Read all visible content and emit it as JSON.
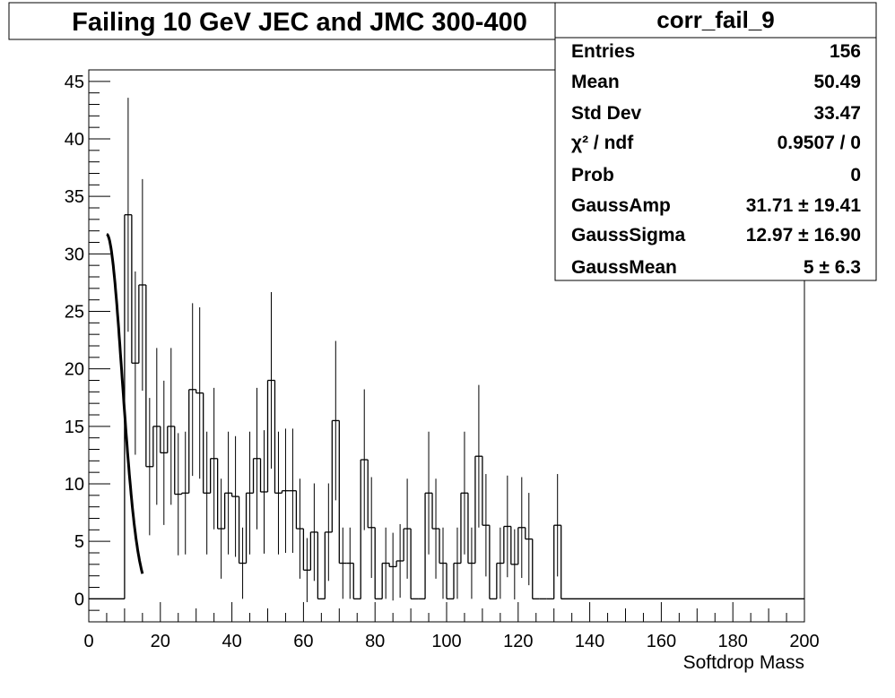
{
  "chart_data": {
    "type": "bar",
    "title": "Failing 10 GeV JEC and JMC 300-400",
    "histogram_name": "corr_fail_9",
    "xlabel": "Softdrop Mass",
    "ylabel": "",
    "xlim": [
      0,
      200
    ],
    "ylim": [
      -2,
      46
    ],
    "grid": false,
    "x_ticks": [
      "0",
      "20",
      "40",
      "60",
      "80",
      "100",
      "120",
      "140",
      "160",
      "180",
      "200"
    ],
    "y_ticks": [
      "0",
      "5",
      "10",
      "15",
      "20",
      "25",
      "30",
      "35",
      "40",
      "45"
    ],
    "bin_width": 2,
    "bin_start": 10,
    "values": [
      33.4,
      20.5,
      27.3,
      11.5,
      15,
      12.7,
      15,
      9.1,
      9.2,
      18.2,
      17.9,
      9.2,
      12.2,
      6.1,
      9.2,
      8.9,
      3.1,
      9.2,
      12.2,
      9.3,
      19,
      9.2,
      9.4,
      9.4,
      6.1,
      2.5,
      5.8,
      0,
      5.8,
      15.5,
      3.1,
      3.1,
      0,
      12.1,
      6.2,
      0,
      3.1,
      2.8,
      3.3,
      6.1,
      0,
      0,
      9.2,
      6.1,
      3.1,
      0,
      3.1,
      9.2,
      3.1,
      12.4,
      6.4,
      0,
      3.1,
      6.3,
      3,
      6.2,
      5.2,
      0,
      0,
      0,
      6.4
    ],
    "fit": {
      "name": "Gauss",
      "amplitude": 31.71,
      "mean": 5,
      "sigma": 12.97,
      "x_range": [
        5,
        15
      ]
    },
    "legend_position": "top-right"
  },
  "stats": [
    {
      "label": "Entries",
      "value": "156"
    },
    {
      "label": "Mean",
      "value": "50.49"
    },
    {
      "label": "Std Dev",
      "value": "33.47"
    },
    {
      "label": "χ² / ndf",
      "value": "0.9507 / 0"
    },
    {
      "label": "Prob",
      "value": "0"
    },
    {
      "label": "GaussAmp",
      "value": "31.71 ± 19.41"
    },
    {
      "label": "GaussSigma",
      "value": "12.97 ± 16.90"
    },
    {
      "label": "GaussMean",
      "value": "5 ± 6.3"
    }
  ],
  "colors": {
    "background": "#ffffff",
    "line": "#000000"
  }
}
